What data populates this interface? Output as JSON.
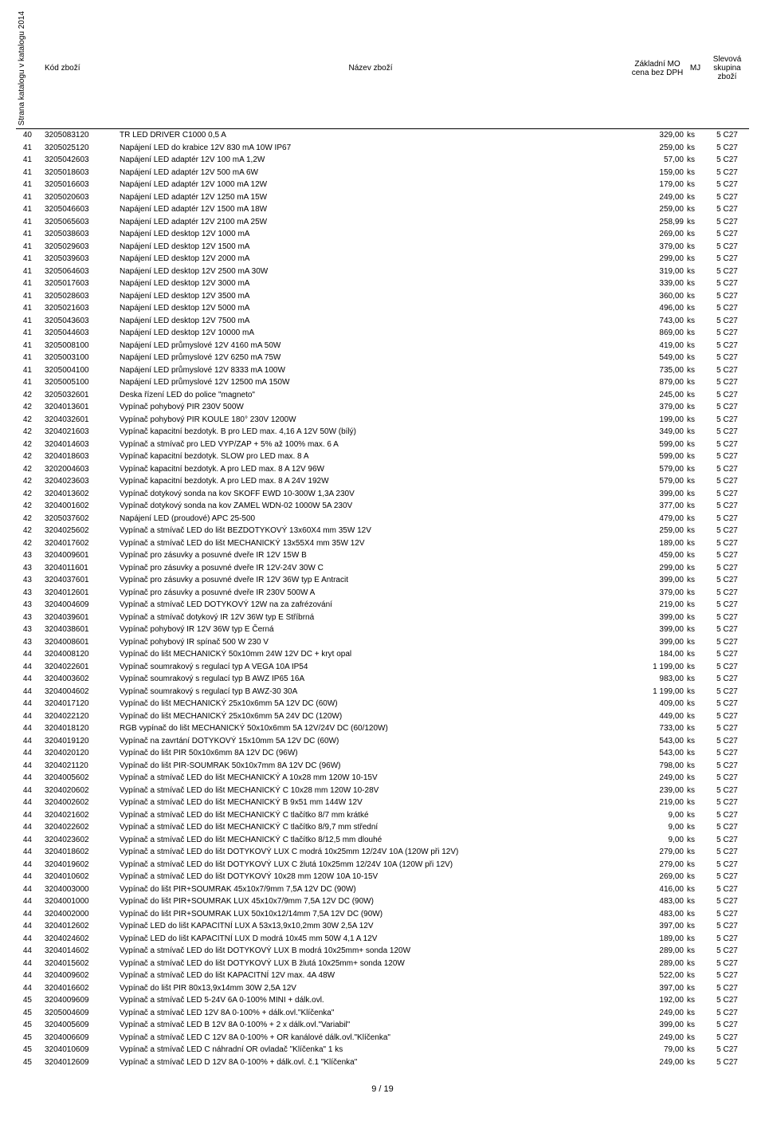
{
  "headers": {
    "page": "Strana katalogu v katalogu 2014",
    "code": "Kód zboží",
    "name": "Název zboží",
    "price": "Základní MO cena bez DPH",
    "mj": "MJ",
    "group": "Slevová skupina zboží"
  },
  "pager": "9 / 19",
  "rows": [
    {
      "p": "40",
      "c": "3205083120",
      "n": "TR LED DRIVER C1000 0,5 A",
      "pr": "329,00",
      "mj": "ks",
      "g": "5 C27"
    },
    {
      "p": "41",
      "c": "3205025120",
      "n": "Napájení LED do krabice 12V  830 mA 10W IP67",
      "pr": "259,00",
      "mj": "ks",
      "g": "5 C27"
    },
    {
      "p": "41",
      "c": "3205042603",
      "n": "Napájení LED adaptér 12V  100 mA 1,2W",
      "pr": "57,00",
      "mj": "ks",
      "g": "5 C27"
    },
    {
      "p": "41",
      "c": "3205018603",
      "n": "Napájení LED adaptér 12V  500 mA 6W",
      "pr": "159,00",
      "mj": "ks",
      "g": "5 C27"
    },
    {
      "p": "41",
      "c": "3205016603",
      "n": "Napájení LED adaptér 12V 1000 mA 12W",
      "pr": "179,00",
      "mj": "ks",
      "g": "5 C27"
    },
    {
      "p": "41",
      "c": "3205020603",
      "n": "Napájení LED adaptér 12V 1250 mA 15W",
      "pr": "249,00",
      "mj": "ks",
      "g": "5 C27"
    },
    {
      "p": "41",
      "c": "3205046603",
      "n": "Napájení LED adaptér 12V 1500 mA 18W",
      "pr": "259,00",
      "mj": "ks",
      "g": "5 C27"
    },
    {
      "p": "41",
      "c": "3205065603",
      "n": "Napájení LED adaptér 12V 2100 mA 25W",
      "pr": "258,99",
      "mj": "ks",
      "g": "5 C27"
    },
    {
      "p": "41",
      "c": "3205038603",
      "n": "Napájení LED desktop 12V  1000 mA",
      "pr": "269,00",
      "mj": "ks",
      "g": "5 C27"
    },
    {
      "p": "41",
      "c": "3205029603",
      "n": "Napájení LED desktop 12V  1500 mA",
      "pr": "379,00",
      "mj": "ks",
      "g": "5 C27"
    },
    {
      "p": "41",
      "c": "3205039603",
      "n": "Napájení LED desktop 12V  2000 mA",
      "pr": "299,00",
      "mj": "ks",
      "g": "5 C27"
    },
    {
      "p": "41",
      "c": "3205064603",
      "n": "Napájení LED desktop 12V  2500 mA 30W",
      "pr": "319,00",
      "mj": "ks",
      "g": "5 C27"
    },
    {
      "p": "41",
      "c": "3205017603",
      "n": "Napájení LED desktop 12V  3000 mA",
      "pr": "339,00",
      "mj": "ks",
      "g": "5 C27"
    },
    {
      "p": "41",
      "c": "3205028603",
      "n": "Napájení LED desktop 12V  3500 mA",
      "pr": "360,00",
      "mj": "ks",
      "g": "5 C27"
    },
    {
      "p": "41",
      "c": "3205021603",
      "n": "Napájení LED desktop 12V  5000 mA",
      "pr": "496,00",
      "mj": "ks",
      "g": "5 C27"
    },
    {
      "p": "41",
      "c": "3205043603",
      "n": "Napájení LED desktop 12V  7500 mA",
      "pr": "743,00",
      "mj": "ks",
      "g": "5 C27"
    },
    {
      "p": "41",
      "c": "3205044603",
      "n": "Napájení LED desktop 12V 10000 mA",
      "pr": "869,00",
      "mj": "ks",
      "g": "5 C27"
    },
    {
      "p": "41",
      "c": "3205008100",
      "n": "Napájení LED průmyslové 12V  4160 mA 50W",
      "pr": "419,00",
      "mj": "ks",
      "g": "5 C27"
    },
    {
      "p": "41",
      "c": "3205003100",
      "n": "Napájení LED průmyslové 12V  6250 mA 75W",
      "pr": "549,00",
      "mj": "ks",
      "g": "5 C27"
    },
    {
      "p": "41",
      "c": "3205004100",
      "n": "Napájení LED průmyslové 12V  8333 mA 100W",
      "pr": "735,00",
      "mj": "ks",
      "g": "5 C27"
    },
    {
      "p": "41",
      "c": "3205005100",
      "n": "Napájení LED průmyslové 12V 12500 mA 150W",
      "pr": "879,00",
      "mj": "ks",
      "g": "5 C27"
    },
    {
      "p": "42",
      "c": "3205032601",
      "n": "Deska řízení LED do police \"magneto\"",
      "pr": "245,00",
      "mj": "ks",
      "g": "5 C27"
    },
    {
      "p": "42",
      "c": "3204013601",
      "n": "Vypínač pohybový PIR 230V 500W",
      "pr": "379,00",
      "mj": "ks",
      "g": "5 C27"
    },
    {
      "p": "42",
      "c": "3204032601",
      "n": "Vypínač pohybový PIR KOULE 180° 230V 1200W",
      "pr": "199,00",
      "mj": "ks",
      "g": "5 C27"
    },
    {
      "p": "42",
      "c": "3204021603",
      "n": "Vypínač kapacitní bezdotyk. B pro LED max. 4,16 A 12V 50W (bílý)",
      "pr": "349,00",
      "mj": "ks",
      "g": "5 C27"
    },
    {
      "p": "42",
      "c": "3204014603",
      "n": "Vypínač a stmívač pro LED VYP/ZAP + 5% až 100% max. 6 A",
      "pr": "599,00",
      "mj": "ks",
      "g": "5 C27"
    },
    {
      "p": "42",
      "c": "3204018603",
      "n": "Vypínač kapacitní bezdotyk. SLOW pro LED max. 8 A",
      "pr": "599,00",
      "mj": "ks",
      "g": "5 C27"
    },
    {
      "p": "42",
      "c": "3202004603",
      "n": "Vypínač kapacitní bezdotyk. A pro LED max. 8 A 12V 96W",
      "pr": "579,00",
      "mj": "ks",
      "g": "5 C27"
    },
    {
      "p": "42",
      "c": "3204023603",
      "n": "Vypínač kapacitní bezdotyk. A pro LED max. 8 A 24V 192W",
      "pr": "579,00",
      "mj": "ks",
      "g": "5 C27"
    },
    {
      "p": "42",
      "c": "3204013602",
      "n": "Vypínač dotykový sonda na kov SKOFF EWD 10-300W 1,3A 230V",
      "pr": "399,00",
      "mj": "ks",
      "g": "5 C27"
    },
    {
      "p": "42",
      "c": "3204001602",
      "n": "Vypínač dotykový sonda na kov ZAMEL WDN-02 1000W 5A 230V",
      "pr": "377,00",
      "mj": "ks",
      "g": "5 C27"
    },
    {
      "p": "42",
      "c": "3205037602",
      "n": "Napájení LED (proudové) APC 25-500",
      "pr": "479,00",
      "mj": "ks",
      "g": "5 C27"
    },
    {
      "p": "42",
      "c": "3204025602",
      "n": "Vypínač a stmívač LED do lišt BEZDOTYKOVÝ 13x60X4 mm 35W 12V",
      "pr": "259,00",
      "mj": "ks",
      "g": "5 C27"
    },
    {
      "p": "42",
      "c": "3204017602",
      "n": "Vypínač a stmívač LED do lišt MECHANICKÝ 13x55X4 mm 35W 12V",
      "pr": "189,00",
      "mj": "ks",
      "g": "5 C27"
    },
    {
      "p": "43",
      "c": "3204009601",
      "n": "Vypínač pro zásuvky a posuvné dveře IR 12V 15W B",
      "pr": "459,00",
      "mj": "ks",
      "g": "5 C27"
    },
    {
      "p": "43",
      "c": "3204011601",
      "n": "Vypínač pro zásuvky a posuvné dveře IR 12V-24V 30W C",
      "pr": "299,00",
      "mj": "ks",
      "g": "5 C27"
    },
    {
      "p": "43",
      "c": "3204037601",
      "n": "Vypínač pro zásuvky a posuvné dveře IR 12V 36W typ E Antracit",
      "pr": "399,00",
      "mj": "ks",
      "g": "5 C27"
    },
    {
      "p": "43",
      "c": "3204012601",
      "n": "Vypínač pro zásuvky a posuvné dveře IR 230V 500W A",
      "pr": "379,00",
      "mj": "ks",
      "g": "5 C27"
    },
    {
      "p": "43",
      "c": "3204004609",
      "n": "Vypínač a stmívač LED DOTYKOVÝ 12W na za zafrézování",
      "pr": "219,00",
      "mj": "ks",
      "g": "5 C27"
    },
    {
      "p": "43",
      "c": "3204039601",
      "n": "Vypínač a stmívač dotykový IR 12V 36W typ E Stříbrná",
      "pr": "399,00",
      "mj": "ks",
      "g": "5 C27"
    },
    {
      "p": "43",
      "c": "3204038601",
      "n": "Vypínač pohybový IR 12V 36W typ E Černá",
      "pr": "399,00",
      "mj": "ks",
      "g": "5 C27"
    },
    {
      "p": "43",
      "c": "3204008601",
      "n": "Vypínač pohybový IR spínač 500 W 230 V",
      "pr": "399,00",
      "mj": "ks",
      "g": "5 C27"
    },
    {
      "p": "44",
      "c": "3204008120",
      "n": "Vypínač do lišt MECHANICKÝ 50x10mm 24W 12V DC + kryt opal",
      "pr": "184,00",
      "mj": "ks",
      "g": "5 C27"
    },
    {
      "p": "44",
      "c": "3204022601",
      "n": "Vypínač soumrakový s regulací typ A VEGA 10A IP54",
      "pr": "1 199,00",
      "mj": "ks",
      "g": "5 C27"
    },
    {
      "p": "44",
      "c": "3204003602",
      "n": "Vypínač soumrakový s regulací typ B AWZ IP65 16A",
      "pr": "983,00",
      "mj": "ks",
      "g": "5 C27"
    },
    {
      "p": "44",
      "c": "3204004602",
      "n": "Vypínač soumrakový s regulací typ B AWZ-30 30A",
      "pr": "1 199,00",
      "mj": "ks",
      "g": "5 C27"
    },
    {
      "p": "44",
      "c": "3204017120",
      "n": "Vypínač do lišt MECHANICKÝ 25x10x6mm 5A 12V DC (60W)",
      "pr": "409,00",
      "mj": "ks",
      "g": "5 C27"
    },
    {
      "p": "44",
      "c": "3204022120",
      "n": "Vypínač do lišt MECHANICKÝ 25x10x6mm 5A 24V DC (120W)",
      "pr": "449,00",
      "mj": "ks",
      "g": "5 C27"
    },
    {
      "p": "44",
      "c": "3204018120",
      "n": "RGB vypínač do lišt MECHANICKÝ 50x10x6mm 5A 12V/24V DC (60/120W)",
      "pr": "733,00",
      "mj": "ks",
      "g": "5 C27"
    },
    {
      "p": "44",
      "c": "3204019120",
      "n": "Vypínač na zavrtání DOTYKOVÝ 15x10mm 5A 12V DC (60W)",
      "pr": "543,00",
      "mj": "ks",
      "g": "5 C27"
    },
    {
      "p": "44",
      "c": "3204020120",
      "n": "Vypínač do lišt PIR 50x10x6mm 8A 12V DC (96W)",
      "pr": "543,00",
      "mj": "ks",
      "g": "5 C27"
    },
    {
      "p": "44",
      "c": "3204021120",
      "n": "Vypínač do lišt PIR-SOUMRAK 50x10x7mm 8A 12V DC (96W)",
      "pr": "798,00",
      "mj": "ks",
      "g": "5 C27"
    },
    {
      "p": "44",
      "c": "3204005602",
      "n": "Vypínač a stmívač LED do lišt MECHANICKÝ A 10x28 mm 120W 10-15V",
      "pr": "249,00",
      "mj": "ks",
      "g": "5 C27"
    },
    {
      "p": "44",
      "c": "3204020602",
      "n": "Vypínač a stmívač LED do lišt MECHANICKÝ C 10x28 mm 120W 10-28V",
      "pr": "239,00",
      "mj": "ks",
      "g": "5 C27"
    },
    {
      "p": "44",
      "c": "3204002602",
      "n": "Vypínač a stmívač LED do lišt MECHANICKÝ B 9x51 mm 144W 12V",
      "pr": "219,00",
      "mj": "ks",
      "g": "5 C27"
    },
    {
      "p": "44",
      "c": "3204021602",
      "n": "Vypínač a stmívač LED do lišt MECHANICKÝ C tlačítko 8/7 mm krátké",
      "pr": "9,00",
      "mj": "ks",
      "g": "5 C27"
    },
    {
      "p": "44",
      "c": "3204022602",
      "n": "Vypínač a stmívač LED do lišt MECHANICKÝ C tlačítko 8/9,7 mm střední",
      "pr": "9,00",
      "mj": "ks",
      "g": "5 C27"
    },
    {
      "p": "44",
      "c": "3204023602",
      "n": "Vypínač a stmívač LED do lišt MECHANICKÝ C tlačítko 8/12,5 mm dlouhé",
      "pr": "9,00",
      "mj": "ks",
      "g": "5 C27"
    },
    {
      "p": "44",
      "c": "3204018602",
      "n": "Vypínač a stmívač LED do lišt DOTYKOVÝ LUX C modrá 10x25mm 12/24V 10A (120W při 12V)",
      "pr": "279,00",
      "mj": "ks",
      "g": "5 C27"
    },
    {
      "p": "44",
      "c": "3204019602",
      "n": "Vypínač a stmívač LED do lišt DOTYKOVÝ LUX C žlutá 10x25mm 12/24V 10A (120W při 12V)",
      "pr": "279,00",
      "mj": "ks",
      "g": "5 C27"
    },
    {
      "p": "44",
      "c": "3204010602",
      "n": "Vypínač a stmívač LED do lišt DOTYKOVÝ 10x28 mm 120W 10A 10-15V",
      "pr": "269,00",
      "mj": "ks",
      "g": "5 C27"
    },
    {
      "p": "44",
      "c": "3204003000",
      "n": "Vypínač do lišt PIR+SOUMRAK 45x10x7/9mm 7,5A 12V DC (90W)",
      "pr": "416,00",
      "mj": "ks",
      "g": "5 C27"
    },
    {
      "p": "44",
      "c": "3204001000",
      "n": "Vypínač do lišt PIR+SOUMRAK LUX 45x10x7/9mm 7,5A 12V DC (90W)",
      "pr": "483,00",
      "mj": "ks",
      "g": "5 C27"
    },
    {
      "p": "44",
      "c": "3204002000",
      "n": "Vypínač do lišt PIR+SOUMRAK LUX 50x10x12/14mm 7,5A 12V DC (90W)",
      "pr": "483,00",
      "mj": "ks",
      "g": "5 C27"
    },
    {
      "p": "44",
      "c": "3204012602",
      "n": "Vypínač LED do lišt KAPACITNÍ LUX  A 53x13,9x10,2mm 30W 2,5A 12V",
      "pr": "397,00",
      "mj": "ks",
      "g": "5 C27"
    },
    {
      "p": "44",
      "c": "3204024602",
      "n": "Vypínač LED do lišt KAPACITNÍ LUX D modrá 10x45 mm 50W 4,1 A 12V",
      "pr": "189,00",
      "mj": "ks",
      "g": "5 C27"
    },
    {
      "p": "44",
      "c": "3204014602",
      "n": "Vypínač a stmívač LED do lišt DOTYKOVÝ LUX B modrá 10x25mm+ sonda 120W",
      "pr": "289,00",
      "mj": "ks",
      "g": "5 C27"
    },
    {
      "p": "44",
      "c": "3204015602",
      "n": "Vypínač a stmívač LED do lišt DOTYKOVÝ LUX B žlutá 10x25mm+ sonda 120W",
      "pr": "289,00",
      "mj": "ks",
      "g": "5 C27"
    },
    {
      "p": "44",
      "c": "3204009602",
      "n": "Vypínač a stmívač LED do lišt KAPACITNÍ 12V max. 4A 48W",
      "pr": "522,00",
      "mj": "ks",
      "g": "5 C27"
    },
    {
      "p": "44",
      "c": "3204016602",
      "n": "Vypínač do lišt PIR 80x13,9x14mm 30W 2,5A 12V",
      "pr": "397,00",
      "mj": "ks",
      "g": "5 C27"
    },
    {
      "p": "45",
      "c": "3204009609",
      "n": "Vypínač a stmívač LED 5-24V 6A 0-100% MINI + dálk.ovl.",
      "pr": "192,00",
      "mj": "ks",
      "g": "5 C27"
    },
    {
      "p": "45",
      "c": "3205004609",
      "n": "Vypínač a stmívač LED 12V 8A 0-100% + dálk.ovl.\"Klíčenka\"",
      "pr": "249,00",
      "mj": "ks",
      "g": "5 C27"
    },
    {
      "p": "45",
      "c": "3204005609",
      "n": "Vypínač a stmívač LED B 12V 8A 0-100% + 2 x dálk.ovl.\"Variabil\"",
      "pr": "399,00",
      "mj": "ks",
      "g": "5 C27"
    },
    {
      "p": "45",
      "c": "3204006609",
      "n": "Vypínač a stmívač LED C 12V 8A 0-100% + OR kanálové dálk.ovl.\"Klíčenka\"",
      "pr": "249,00",
      "mj": "ks",
      "g": "5 C27"
    },
    {
      "p": "45",
      "c": "3204010609",
      "n": "Vypínač a stmívač LED C náhradní OR ovladač \"Klíčenka\" 1 ks",
      "pr": "79,00",
      "mj": "ks",
      "g": "5 C27"
    },
    {
      "p": "45",
      "c": "3204012609",
      "n": "Vypínač a stmívač LED D 12V 8A 0-100% + dálk.ovl. č.1 \"Klíčenka\"",
      "pr": "249,00",
      "mj": "ks",
      "g": "5 C27"
    }
  ]
}
